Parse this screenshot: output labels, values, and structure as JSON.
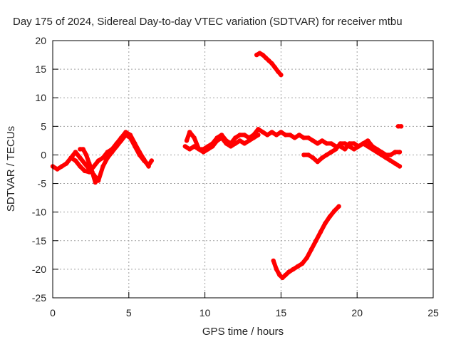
{
  "chart_data": {
    "type": "scatter",
    "title": "Day 175 of 2024, Sidereal Day-to-day VTEC variation (SDTVAR) for receiver mtbu",
    "xlabel": "GPS time / hours",
    "ylabel": "SDTVAR / TECUs",
    "xlim": [
      0,
      25
    ],
    "ylim": [
      -25,
      20
    ],
    "xticks": [
      0,
      5,
      10,
      15,
      20,
      25
    ],
    "yticks": [
      -25,
      -20,
      -15,
      -10,
      -5,
      0,
      5,
      10,
      15,
      20
    ],
    "grid": true,
    "marker_color": "#ff0000",
    "series": [
      {
        "name": "track-1",
        "x": [
          0.0,
          0.3,
          0.6,
          0.9,
          1.2,
          1.5,
          1.8,
          2.1,
          2.4,
          2.7,
          3.0,
          3.3,
          3.6,
          3.9,
          4.2,
          4.5,
          4.8,
          5.1,
          5.4,
          5.7,
          6.0,
          6.3,
          6.5
        ],
        "y": [
          -2.0,
          -2.5,
          -2.0,
          -1.5,
          -0.5,
          0.5,
          -0.5,
          -1.5,
          -2.5,
          -3.5,
          -4.5,
          -2.0,
          -0.5,
          0.5,
          1.5,
          2.5,
          3.5,
          3.0,
          1.5,
          0.0,
          -1.0,
          -1.8,
          -1.0
        ]
      },
      {
        "name": "track-2",
        "x": [
          1.2,
          1.5,
          1.8,
          2.1,
          2.4,
          2.7,
          3.0,
          3.3,
          3.6,
          3.9,
          4.2,
          4.5,
          4.8,
          5.1,
          5.4,
          5.7,
          6.0,
          6.3
        ],
        "y": [
          -0.5,
          -1.0,
          -2.0,
          -2.8,
          -3.0,
          -2.0,
          -1.0,
          -0.5,
          0.5,
          1.0,
          2.0,
          3.0,
          4.0,
          3.5,
          2.0,
          0.5,
          -0.8,
          -2.0
        ]
      },
      {
        "name": "track-3",
        "x": [
          1.8,
          2.0,
          2.2,
          2.4,
          2.6,
          2.8
        ],
        "y": [
          1.0,
          1.0,
          0.0,
          -1.5,
          -3.0,
          -4.8
        ]
      },
      {
        "name": "track-4",
        "x": [
          8.8,
          9.0,
          9.3,
          9.6,
          9.9,
          10.2,
          10.5,
          10.8,
          11.1,
          11.4,
          11.7,
          12.0,
          12.3,
          12.6,
          12.9,
          13.2,
          13.5,
          13.8,
          14.1,
          14.4,
          14.7,
          15.0,
          15.3,
          15.6,
          15.9,
          16.2,
          16.5,
          16.8,
          17.1,
          17.4,
          17.7,
          18.0,
          18.3,
          18.6,
          18.9,
          19.2,
          19.5,
          19.8,
          20.1,
          20.4,
          20.7,
          21.0,
          21.3,
          21.6,
          21.9,
          22.2,
          22.5,
          22.8
        ],
        "y": [
          2.5,
          4.0,
          3.0,
          1.0,
          1.0,
          1.5,
          2.0,
          3.0,
          3.5,
          2.5,
          2.0,
          3.0,
          3.5,
          3.5,
          3.0,
          3.5,
          4.5,
          4.0,
          3.5,
          4.0,
          3.5,
          4.0,
          3.5,
          3.5,
          3.0,
          3.5,
          3.0,
          3.0,
          2.5,
          2.0,
          2.5,
          2.0,
          2.0,
          1.5,
          1.5,
          1.0,
          2.0,
          2.0,
          1.5,
          2.0,
          2.5,
          1.5,
          1.0,
          0.5,
          0.0,
          0.0,
          0.5,
          0.5
        ]
      },
      {
        "name": "track-5",
        "x": [
          8.7,
          9.0,
          9.3,
          9.6,
          9.9,
          10.2,
          10.5,
          10.8,
          11.1,
          11.4,
          11.7,
          12.0,
          12.3,
          12.6,
          12.9,
          13.2,
          13.5
        ],
        "y": [
          1.5,
          1.0,
          1.5,
          1.0,
          0.5,
          1.0,
          1.5,
          2.5,
          3.0,
          2.0,
          1.5,
          2.0,
          2.5,
          2.0,
          2.5,
          3.0,
          3.5
        ]
      },
      {
        "name": "track-6",
        "x": [
          16.5,
          16.8,
          17.1,
          17.4,
          17.7,
          18.0,
          18.3,
          18.6,
          18.9,
          19.2,
          19.5,
          19.8,
          20.1,
          20.4,
          20.7,
          21.0,
          21.3,
          21.6,
          21.9,
          22.2,
          22.5,
          22.8
        ],
        "y": [
          0.0,
          0.0,
          -0.5,
          -1.2,
          -0.5,
          0.0,
          0.5,
          1.0,
          2.0,
          2.0,
          1.5,
          1.0,
          1.5,
          2.0,
          1.5,
          1.0,
          0.5,
          0.0,
          -0.5,
          -1.0,
          -1.5,
          -2.0
        ]
      },
      {
        "name": "track-7",
        "x": [
          13.4,
          13.6,
          13.8,
          14.0,
          14.2,
          14.4,
          14.6,
          14.8,
          15.0
        ],
        "y": [
          17.5,
          17.8,
          17.5,
          17.0,
          16.5,
          16.0,
          15.3,
          14.6,
          14.0
        ]
      },
      {
        "name": "track-8",
        "x": [
          14.5,
          14.7,
          14.9,
          15.1,
          15.3,
          15.5,
          15.8,
          16.1,
          16.4,
          16.7,
          17.0,
          17.3,
          17.6,
          17.9,
          18.2,
          18.5,
          18.8
        ],
        "y": [
          -18.5,
          -20.0,
          -21.0,
          -21.5,
          -21.0,
          -20.5,
          -20.0,
          -19.5,
          -19.0,
          -18.0,
          -16.5,
          -15.0,
          -13.5,
          -12.0,
          -10.8,
          -9.8,
          -9.0
        ]
      },
      {
        "name": "track-9",
        "x": [
          22.7,
          22.9
        ],
        "y": [
          5.0,
          5.0
        ]
      }
    ]
  }
}
